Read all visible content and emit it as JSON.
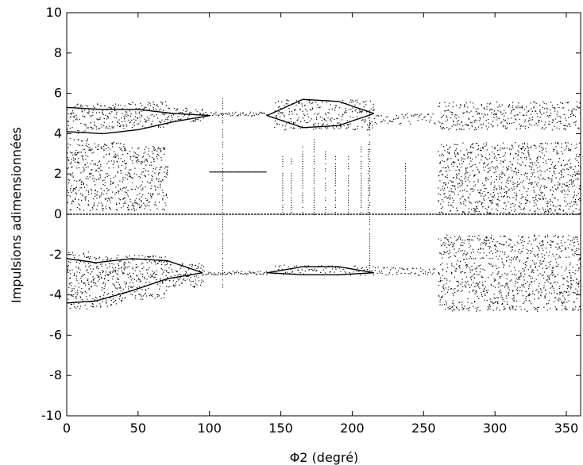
{
  "chart_data": {
    "type": "scatter",
    "title": "",
    "xlabel": "Φ2 (degré)",
    "ylabel": "Impulsions adimensionnées",
    "xlim": [
      0,
      360
    ],
    "ylim": [
      -10,
      10
    ],
    "xticks": [
      0,
      50,
      100,
      150,
      200,
      250,
      300,
      350
    ],
    "yticks": [
      -10,
      -8,
      -6,
      -4,
      -2,
      0,
      2,
      4,
      6,
      8,
      10
    ],
    "grid": false,
    "legend": "none",
    "point_color": "#000000",
    "zero_line": {
      "y": 0,
      "x_range": [
        0,
        360
      ]
    },
    "regions": [
      {
        "x": [
          0,
          15
        ],
        "y": [
          [
            -4.7,
            -1.8
          ],
          [
            0.2,
            3.8
          ],
          [
            4.0,
            5.5
          ]
        ]
      },
      {
        "x": [
          15,
          40
        ],
        "y": [
          [
            -4.6,
            -2.0
          ],
          [
            0.2,
            3.6
          ],
          [
            4.2,
            5.5
          ]
        ]
      },
      {
        "x": [
          40,
          70
        ],
        "y": [
          [
            -4.2,
            -2.0
          ],
          [
            0.2,
            3.4
          ],
          [
            4.3,
            5.6
          ]
        ]
      },
      {
        "x": [
          70,
          95
        ],
        "y": [
          [
            -3.6,
            -2.4
          ],
          [
            4.6,
            5.3
          ]
        ]
      },
      {
        "x": [
          95,
          140
        ],
        "y": [
          [
            -3.0,
            -2.8
          ],
          [
            4.9,
            5.1
          ]
        ]
      },
      {
        "x": [
          145,
          215
        ],
        "y": [
          [
            -3.0,
            -2.5
          ],
          [
            4.2,
            5.7
          ]
        ]
      },
      {
        "x": [
          215,
          258
        ],
        "y": [
          [
            -3.0,
            -2.6
          ],
          [
            4.5,
            5.0
          ]
        ]
      },
      {
        "x": [
          260,
          360
        ],
        "y": [
          [
            -4.8,
            -1.0
          ],
          [
            0.0,
            3.6
          ],
          [
            4.2,
            5.6
          ]
        ]
      }
    ],
    "vertical_streaks": [
      {
        "x": 109,
        "y": [
          -3.6,
          6.0
        ]
      },
      {
        "x": 151,
        "y": [
          0.0,
          3.0
        ]
      },
      {
        "x": 157,
        "y": [
          0.0,
          3.0
        ]
      },
      {
        "x": 165,
        "y": [
          0.0,
          3.4
        ]
      },
      {
        "x": 173,
        "y": [
          0.0,
          3.8
        ]
      },
      {
        "x": 181,
        "y": [
          0.0,
          3.2
        ]
      },
      {
        "x": 188,
        "y": [
          0.0,
          3.0
        ]
      },
      {
        "x": 197,
        "y": [
          0.0,
          3.0
        ]
      },
      {
        "x": 206,
        "y": [
          0.0,
          3.6
        ]
      },
      {
        "x": 211,
        "y": [
          0.0,
          3.6
        ]
      },
      {
        "x": 212,
        "y": [
          -3.0,
          5.2
        ]
      },
      {
        "x": 237,
        "y": [
          0.0,
          2.6
        ]
      }
    ],
    "branches": [
      {
        "x": [
          0,
          20,
          45,
          70,
          95
        ],
        "y": [
          -4.4,
          -4.3,
          -3.8,
          -3.2,
          -2.9
        ]
      },
      {
        "x": [
          0,
          20,
          45,
          70,
          95
        ],
        "y": [
          -2.2,
          -2.4,
          -2.2,
          -2.3,
          -2.9
        ]
      },
      {
        "x": [
          0,
          25,
          50,
          75,
          100
        ],
        "y": [
          5.3,
          5.2,
          5.2,
          5.0,
          4.9
        ]
      },
      {
        "x": [
          0,
          25,
          50,
          75,
          100
        ],
        "y": [
          4.1,
          4.0,
          4.2,
          4.6,
          4.9
        ]
      },
      {
        "x": [
          140,
          165,
          190,
          215
        ],
        "y": [
          4.9,
          5.7,
          5.6,
          5.0
        ]
      },
      {
        "x": [
          140,
          165,
          190,
          215
        ],
        "y": [
          4.9,
          4.3,
          4.4,
          5.0
        ]
      },
      {
        "x": [
          140,
          165,
          190,
          215
        ],
        "y": [
          -2.9,
          -2.6,
          -2.6,
          -2.9
        ]
      },
      {
        "x": [
          140,
          165,
          190,
          215
        ],
        "y": [
          -2.9,
          -3.0,
          -3.0,
          -2.9
        ]
      },
      {
        "x": [
          100,
          140
        ],
        "y": [
          2.1,
          2.1
        ]
      }
    ]
  }
}
